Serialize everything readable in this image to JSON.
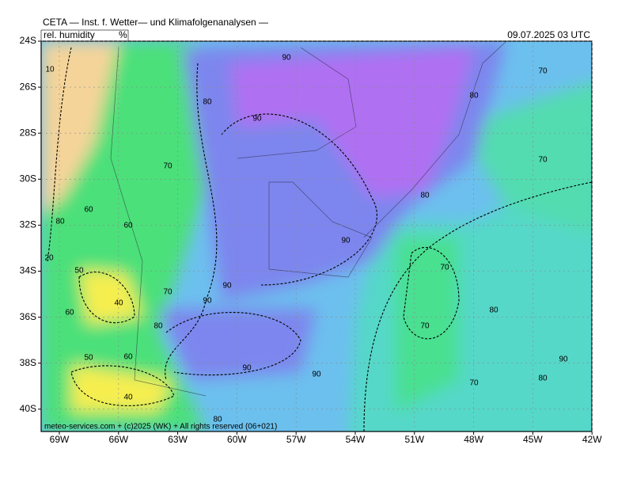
{
  "header": {
    "title": "CETA — Inst. f. Wetter— und Klimafolgenanalysen —",
    "parameter": "rel. humidity",
    "unit": "%",
    "valid_time": "09.07.2025  03 UTC"
  },
  "axes": {
    "lat_labels": [
      "24S",
      "26S",
      "28S",
      "30S",
      "32S",
      "34S",
      "36S",
      "38S",
      "40S"
    ],
    "lon_labels": [
      "69W",
      "66W",
      "63W",
      "60W",
      "57W",
      "54W",
      "51W",
      "48W",
      "45W",
      "42W"
    ]
  },
  "contour_labels": [
    "10",
    "90",
    "70",
    "80",
    "80",
    "90",
    "70",
    "70",
    "80",
    "60",
    "80",
    "60",
    "90",
    "20",
    "50",
    "70",
    "90",
    "70",
    "40",
    "90",
    "60",
    "80",
    "80",
    "70",
    "60",
    "50",
    "90",
    "90",
    "90",
    "80",
    "70",
    "40",
    "80"
  ],
  "footer": "meteo-services.com + (c)2025 (WK) + All rights reserved (06+021)"
}
